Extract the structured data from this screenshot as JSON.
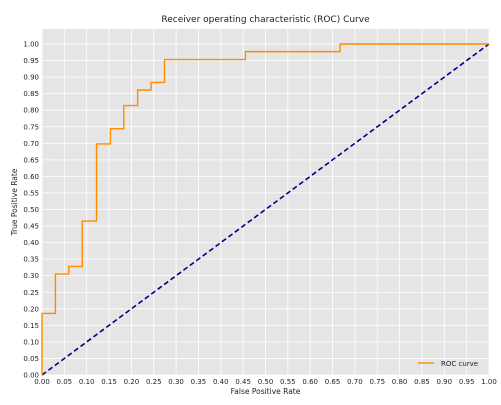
{
  "chart_data": {
    "type": "line",
    "title": "Receiver operating characteristic (ROC) Curve",
    "xlabel": "False Positive Rate",
    "ylabel": "True Positive Rate",
    "xlim": [
      0,
      1
    ],
    "ylim": [
      0,
      1
    ],
    "x_ticks": [
      "0.00",
      "0.05",
      "0.10",
      "0.15",
      "0.20",
      "0.25",
      "0.30",
      "0.35",
      "0.40",
      "0.45",
      "0.50",
      "0.55",
      "0.60",
      "0.65",
      "0.70",
      "0.75",
      "0.80",
      "0.85",
      "0.90",
      "0.95",
      "1.00"
    ],
    "y_ticks": [
      "0.00",
      "0.05",
      "0.10",
      "0.15",
      "0.20",
      "0.25",
      "0.30",
      "0.35",
      "0.40",
      "0.45",
      "0.50",
      "0.55",
      "0.60",
      "0.65",
      "0.70",
      "0.75",
      "0.80",
      "0.85",
      "0.90",
      "0.95",
      "1.00"
    ],
    "grid": true,
    "legend_position": "lower-right",
    "colors": {
      "background": "#e5e5e5",
      "grid": "#ffffff",
      "roc": "#ff8c00",
      "diagonal": "#00008b"
    },
    "series": [
      {
        "name": "ROC curve",
        "style": "solid",
        "x": [
          0.0,
          0.0,
          0.03,
          0.03,
          0.06,
          0.06,
          0.09,
          0.09,
          0.122,
          0.122,
          0.153,
          0.153,
          0.183,
          0.183,
          0.214,
          0.214,
          0.244,
          0.244,
          0.274,
          0.274,
          0.455,
          0.455,
          0.667,
          0.667,
          1.0
        ],
        "y": [
          0.0,
          0.186,
          0.186,
          0.305,
          0.305,
          0.328,
          0.328,
          0.465,
          0.465,
          0.698,
          0.698,
          0.744,
          0.744,
          0.814,
          0.814,
          0.861,
          0.861,
          0.884,
          0.884,
          0.953,
          0.953,
          0.977,
          0.977,
          1.0,
          1.0
        ]
      },
      {
        "style": "dashed",
        "x": [
          0,
          1
        ],
        "y": [
          0,
          1
        ]
      }
    ]
  }
}
